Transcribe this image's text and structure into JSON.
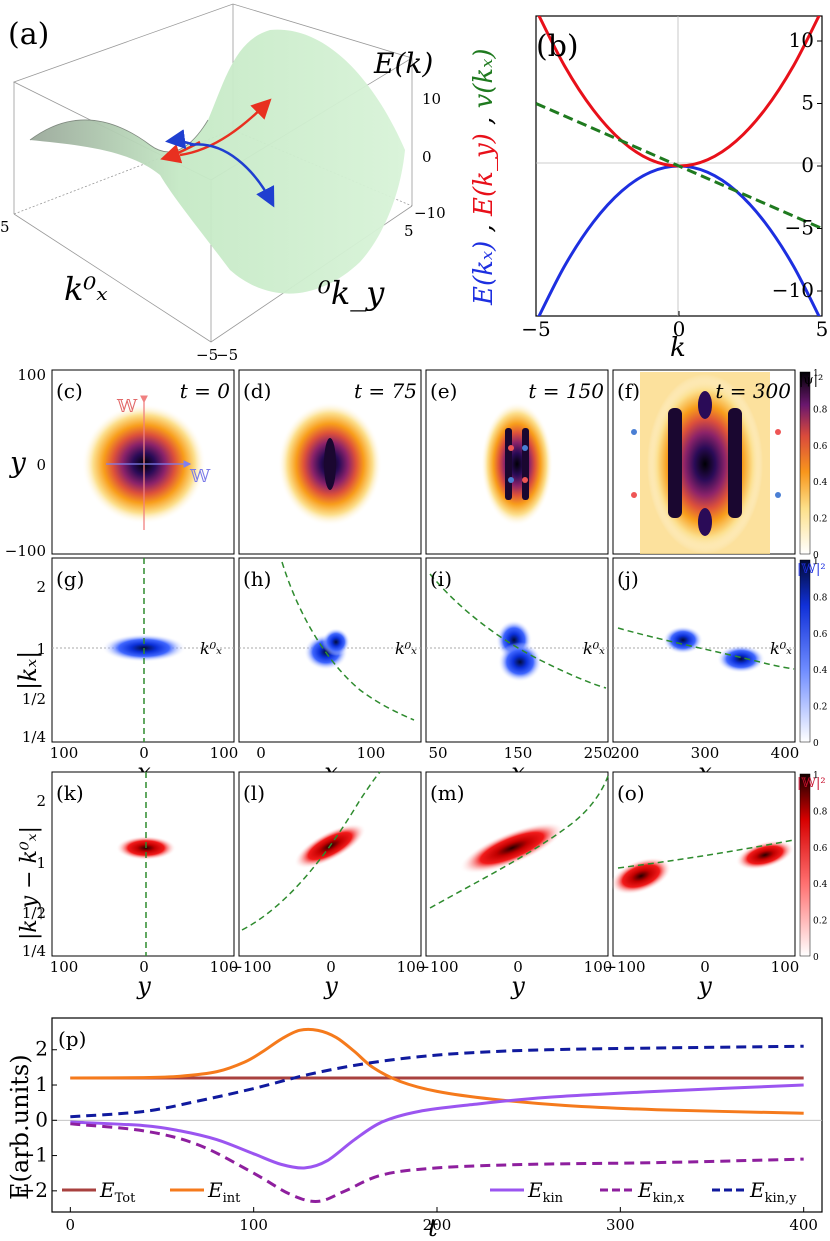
{
  "panel_labels": {
    "a": "(a)",
    "b": "(b)",
    "c": "(c)",
    "d": "(d)",
    "e": "(e)",
    "f": "(f)",
    "g": "(g)",
    "h": "(h)",
    "i": "(i)",
    "j": "(j)",
    "k": "(k)",
    "l": "(l)",
    "m": "(m)",
    "o": "(o)",
    "p": "(p)"
  },
  "time_labels": [
    "t = 0",
    "t = 75",
    "t = 150",
    "t = 300"
  ],
  "colorbar_labels": {
    "psi": "|ψ|²",
    "W_blue": "|𝕎|²",
    "W_red": "|𝕎|²"
  },
  "colorbar_ticks": [
    "0",
    "0.2",
    "0.4",
    "0.6",
    "0.8",
    "1"
  ],
  "kx0_label": "k⁰ₓ",
  "wave_labels": {
    "W_red": "𝕎",
    "W_blue": "𝕎"
  },
  "chart_data": [
    {
      "id": "a",
      "type": "surface3d",
      "zlabel": "E(k)",
      "xlabel": "k⁰ₓ",
      "ylabel": "⁰k_y",
      "ticks": {
        "z": [
          "10",
          "0",
          "−10"
        ],
        "corner": [
          "5",
          "5",
          "−5",
          "−5"
        ]
      },
      "colors": {
        "surface": "#cfeccf",
        "red_arrow": "#e83020",
        "blue_arrow": "#1f3fd0"
      }
    },
    {
      "id": "b",
      "type": "line",
      "xlabel": "k",
      "ylabel_parts": [
        {
          "text": "E(kₓ)",
          "color": "#1d2fe0"
        },
        {
          "text": " , ",
          "color": "#000"
        },
        {
          "text": "E(k_y)",
          "color": "#e8101a"
        },
        {
          "text": " , ",
          "color": "#000"
        },
        {
          "text": "v(kₓ)",
          "color": "#1f7a1f"
        }
      ],
      "xlim": [
        -5,
        5
      ],
      "ylim": [
        -12,
        12
      ],
      "xticks": [
        "−5",
        "0",
        "5"
      ],
      "yticks": [
        "−10",
        "−5",
        "0",
        "5",
        "10"
      ],
      "series": [
        {
          "id": "E_kx",
          "color": "#1d2fe0",
          "dash": false,
          "x": [
            -5,
            -4,
            -3,
            -2,
            -1,
            0,
            1,
            2,
            3,
            4,
            5
          ],
          "y": [
            -12.5,
            -8,
            -4.5,
            -2,
            -0.5,
            0,
            -0.5,
            -2,
            -4.5,
            -8,
            -12.5
          ]
        },
        {
          "id": "E_ky",
          "color": "#e8101a",
          "dash": false,
          "x": [
            -5,
            -4,
            -3,
            -2,
            -1,
            0,
            1,
            2,
            3,
            4,
            5
          ],
          "y": [
            12.5,
            8,
            4.5,
            2,
            0.5,
            0,
            0.5,
            2,
            4.5,
            8,
            12.5
          ]
        },
        {
          "id": "v_kx",
          "color": "#1f7a1f",
          "dash": true,
          "x": [
            -5,
            5
          ],
          "y": [
            5,
            -5
          ]
        }
      ]
    },
    {
      "id": "cf",
      "type": "heatmap",
      "panels": [
        "c",
        "d",
        "e",
        "f"
      ],
      "ylabel": "y",
      "yticks": [
        "100",
        "0",
        "−100"
      ],
      "colormap": "inferno"
    },
    {
      "id": "gj",
      "type": "heatmap",
      "panels": [
        "g",
        "h",
        "i",
        "j"
      ],
      "ylabel": "|kₓ|",
      "yticks": [
        "2",
        "1",
        "1/2",
        "1/4"
      ],
      "xlabel": "x",
      "xticks": [
        [
          "100",
          "0",
          "100"
        ],
        [
          "0",
          "100"
        ],
        [
          "50",
          "150",
          "250"
        ],
        [
          "200",
          "300",
          "400"
        ]
      ],
      "colormap": "blue"
    },
    {
      "id": "ko",
      "type": "heatmap",
      "panels": [
        "k",
        "l",
        "m",
        "o"
      ],
      "ylabel": "|k_y − k⁰ₓ|",
      "yticks": [
        "2",
        "1",
        "1/2",
        "1/4"
      ],
      "xlabel": "y",
      "xticks": [
        [
          "100",
          "0",
          "100"
        ],
        [
          "−100",
          "0",
          "100"
        ],
        [
          "−100",
          "0",
          "100"
        ],
        [
          "−100",
          "0",
          "100"
        ]
      ],
      "colormap": "red"
    },
    {
      "id": "p",
      "type": "line",
      "xlabel": "t",
      "ylabel": "E(arb.units)",
      "xlim": [
        -10,
        410
      ],
      "ylim": [
        -2.6,
        2.9
      ],
      "xticks": [
        "0",
        "100",
        "200",
        "300",
        "400"
      ],
      "yticks": [
        "−2",
        "−1",
        "0",
        "1",
        "2"
      ],
      "series": [
        {
          "name": "E_Tot",
          "label_main": "E",
          "label_sub": "Tot",
          "color": "#a8413f",
          "dash": false,
          "t": [
            0,
            400
          ],
          "v": [
            1.2,
            1.2
          ]
        },
        {
          "name": "E_int",
          "label_main": "E",
          "label_sub": "int",
          "color": "#f57a1c",
          "dash": false,
          "t": [
            0,
            40,
            60,
            80,
            95,
            105,
            115,
            125,
            135,
            145,
            155,
            165,
            180,
            200,
            230,
            270,
            320,
            400
          ],
          "v": [
            1.2,
            1.21,
            1.25,
            1.38,
            1.65,
            1.95,
            2.3,
            2.55,
            2.55,
            2.35,
            1.95,
            1.5,
            1.1,
            0.82,
            0.6,
            0.42,
            0.3,
            0.2
          ]
        },
        {
          "name": "E_kin",
          "label_main": "E",
          "label_sub": "kin",
          "color": "#9b55f0",
          "dash": false,
          "t": [
            0,
            40,
            60,
            80,
            100,
            115,
            128,
            140,
            155,
            170,
            190,
            220,
            260,
            320,
            400
          ],
          "v": [
            -0.05,
            -0.15,
            -0.3,
            -0.55,
            -0.95,
            -1.25,
            -1.35,
            -1.15,
            -0.55,
            -0.05,
            0.25,
            0.45,
            0.65,
            0.82,
            1.0
          ]
        },
        {
          "name": "E_kin,x",
          "label_main": "E",
          "label_sub": "kin,x",
          "color": "#8e1f9e",
          "dash": true,
          "t": [
            0,
            40,
            70,
            100,
            120,
            135,
            150,
            170,
            200,
            250,
            320,
            400
          ],
          "v": [
            -0.1,
            -0.3,
            -0.7,
            -1.5,
            -2.1,
            -2.3,
            -2.0,
            -1.55,
            -1.35,
            -1.25,
            -1.2,
            -1.1
          ]
        },
        {
          "name": "E_kin,y",
          "label_main": "E",
          "label_sub": "kin,y",
          "color": "#101a9e",
          "dash": true,
          "t": [
            0,
            40,
            70,
            100,
            130,
            160,
            190,
            220,
            260,
            320,
            400
          ],
          "v": [
            0.1,
            0.25,
            0.55,
            0.9,
            1.3,
            1.6,
            1.8,
            1.92,
            2.0,
            2.05,
            2.1
          ]
        }
      ]
    }
  ]
}
